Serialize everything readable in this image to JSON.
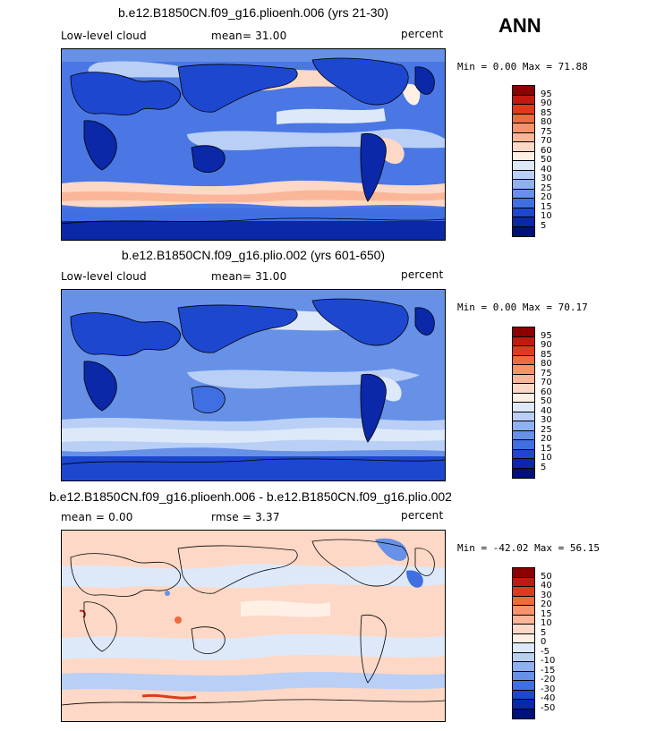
{
  "season": "ANN",
  "panels": [
    {
      "title": "b.e12.B1850CN.f09_g16.plioenh.006 (yrs 21-30)",
      "left_label": "Low-level cloud",
      "stat_label": "mean=  31.00",
      "units": "percent",
      "minmax": "Min =   0.00 Max =  71.88",
      "levels": [
        "95",
        "90",
        "85",
        "80",
        "75",
        "70",
        "60",
        "50",
        "40",
        "30",
        "25",
        "20",
        "15",
        "10",
        "5"
      ],
      "colors": [
        "#8b0000",
        "#c0190f",
        "#dd3b1a",
        "#ef6a3c",
        "#f8926a",
        "#fbb699",
        "#fdd8c6",
        "#fff0e6",
        "#dde9f9",
        "#b9cff5",
        "#8fb1ef",
        "#6691e7",
        "#3f6fe0",
        "#1d47cf",
        "#0a28a7",
        "#00127a"
      ],
      "base": "#4a77e3"
    },
    {
      "title": "b.e12.B1850CN.f09_g16.plio.002 (yrs 601-650)",
      "left_label": "Low-level cloud",
      "stat_label": "mean=  31.00",
      "units": "percent",
      "minmax": "Min =   0.00 Max =  70.17",
      "levels": [
        "95",
        "90",
        "85",
        "80",
        "75",
        "70",
        "60",
        "50",
        "40",
        "30",
        "25",
        "20",
        "15",
        "10",
        "5"
      ],
      "colors": [
        "#8b0000",
        "#c0190f",
        "#dd3b1a",
        "#ef6a3c",
        "#f8926a",
        "#fbb699",
        "#fdd8c6",
        "#fff0e6",
        "#dde9f9",
        "#b9cff5",
        "#8fb1ef",
        "#6691e7",
        "#3f6fe0",
        "#1d47cf",
        "#0a28a7",
        "#00127a"
      ],
      "base": "#4a77e3"
    },
    {
      "title": "b.e12.B1850CN.f09_g16.plioenh.006 - b.e12.B1850CN.f09_g16.plio.002",
      "left_label": "mean =   0.00",
      "stat_label": "rmse =   3.37",
      "units": "percent",
      "minmax": "Min = -42.02 Max =  56.15",
      "levels": [
        "50",
        "40",
        "30",
        "20",
        "15",
        "10",
        "5",
        "0",
        "-5",
        "-10",
        "-15",
        "-20",
        "-30",
        "-40",
        "-50"
      ],
      "colors": [
        "#8b0000",
        "#c0190f",
        "#dd3b1a",
        "#ef6a3c",
        "#f8926a",
        "#fbb699",
        "#fdd8c6",
        "#fff0e6",
        "#dde9f9",
        "#b9cff5",
        "#8fb1ef",
        "#6691e7",
        "#3f6fe0",
        "#1d47cf",
        "#0a28a7",
        "#00127a"
      ],
      "base": "#f3f6fc"
    }
  ]
}
